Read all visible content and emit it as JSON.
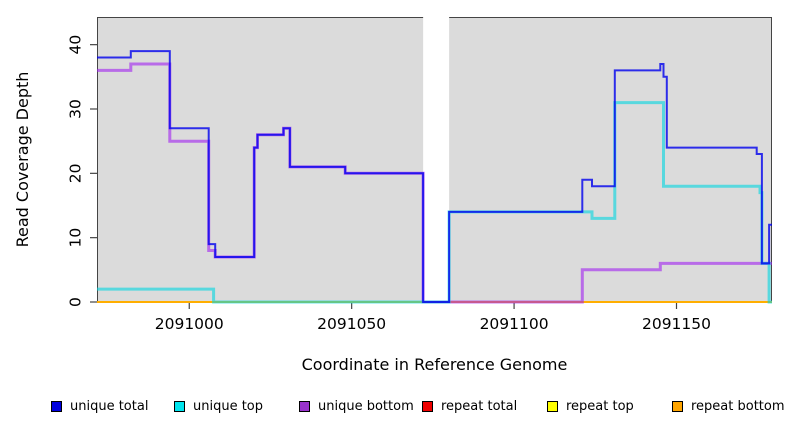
{
  "chart_data": {
    "type": "line",
    "title": "",
    "xlabel": "Coordinate in Reference Genome",
    "ylabel": "Read Coverage Depth",
    "xlim": [
      2090971.6,
      2091179.4
    ],
    "ylim": [
      0,
      44.3
    ],
    "xticks": [
      2091000,
      2091050,
      2091100,
      2091150
    ],
    "yticks": [
      0,
      10,
      20,
      30,
      40
    ],
    "grid": false,
    "panel_background": "#DBDBDB",
    "gap_band": {
      "x0": 2091072,
      "x1": 2091080,
      "color": "#FFFFFF"
    },
    "legend_position": "bottom",
    "series": [
      {
        "name": "repeat total",
        "color": "#FF0000",
        "opacity": 1.0,
        "width": 2,
        "points": [
          [
            2090971.6,
            0
          ],
          [
            2091179.4,
            0
          ]
        ]
      },
      {
        "name": "repeat top",
        "color": "#FFFF00",
        "opacity": 1.0,
        "width": 2,
        "points": [
          [
            2090971.6,
            0
          ],
          [
            2091179.4,
            0
          ]
        ]
      },
      {
        "name": "repeat bottom",
        "color": "#FFA500",
        "opacity": 0.9,
        "width": 2,
        "points": [
          [
            2090971.6,
            0
          ],
          [
            2091179.4,
            0
          ]
        ]
      },
      {
        "name": "unique bottom",
        "color": "#A020F0",
        "opacity": 0.6,
        "width": 3,
        "points": [
          [
            2090971.6,
            36
          ],
          [
            2090982,
            36
          ],
          [
            2090982,
            37
          ],
          [
            2090994,
            37
          ],
          [
            2090994,
            25
          ],
          [
            2091006,
            25
          ],
          [
            2091006,
            8
          ],
          [
            2091008,
            8
          ],
          [
            2091008,
            7
          ],
          [
            2091020,
            7
          ],
          [
            2091020,
            24
          ],
          [
            2091021,
            24
          ],
          [
            2091021,
            26
          ],
          [
            2091029,
            26
          ],
          [
            2091029,
            27
          ],
          [
            2091031,
            27
          ],
          [
            2091031,
            21
          ],
          [
            2091048,
            21
          ],
          [
            2091048,
            20
          ],
          [
            2091072,
            20
          ],
          [
            2091072,
            0
          ],
          [
            2091121,
            0
          ],
          [
            2091121,
            5
          ],
          [
            2091145,
            5
          ],
          [
            2091145,
            6
          ],
          [
            2091179.4,
            6
          ]
        ]
      },
      {
        "name": "unique top",
        "color": "#00D5E0",
        "opacity": 0.6,
        "width": 3,
        "points": [
          [
            2090971.6,
            2
          ],
          [
            2091007.5,
            2
          ],
          [
            2091007.5,
            0
          ],
          [
            2091080,
            0
          ],
          [
            2091080,
            14
          ],
          [
            2091124,
            14
          ],
          [
            2091124,
            13
          ],
          [
            2091131,
            13
          ],
          [
            2091131,
            31
          ],
          [
            2091146,
            31
          ],
          [
            2091146,
            18
          ],
          [
            2091175.7,
            18
          ],
          [
            2091175.7,
            17
          ],
          [
            2091176.3,
            17
          ],
          [
            2091176.3,
            6
          ],
          [
            2091178.5,
            6
          ],
          [
            2091178.5,
            0
          ],
          [
            2091179.4,
            0
          ]
        ]
      },
      {
        "name": "unique total",
        "color": "#0000EE",
        "opacity": 0.8,
        "width": 2,
        "points": [
          [
            2090971.6,
            38
          ],
          [
            2090982,
            38
          ],
          [
            2090982,
            39
          ],
          [
            2090994,
            39
          ],
          [
            2090994,
            27
          ],
          [
            2091006,
            27
          ],
          [
            2091006,
            9
          ],
          [
            2091008,
            9
          ],
          [
            2091008,
            7
          ],
          [
            2091020,
            7
          ],
          [
            2091020,
            24
          ],
          [
            2091021,
            24
          ],
          [
            2091021,
            26
          ],
          [
            2091029,
            26
          ],
          [
            2091029,
            27
          ],
          [
            2091031,
            27
          ],
          [
            2091031,
            21
          ],
          [
            2091048,
            21
          ],
          [
            2091048,
            20
          ],
          [
            2091072,
            20
          ],
          [
            2091072,
            0
          ],
          [
            2091080,
            0
          ],
          [
            2091080,
            14
          ],
          [
            2091121,
            14
          ],
          [
            2091121,
            19
          ],
          [
            2091124,
            19
          ],
          [
            2091124,
            18
          ],
          [
            2091131,
            18
          ],
          [
            2091131,
            36
          ],
          [
            2091145,
            36
          ],
          [
            2091145,
            37
          ],
          [
            2091146,
            37
          ],
          [
            2091146,
            35
          ],
          [
            2091147,
            35
          ],
          [
            2091147,
            24
          ],
          [
            2091174.7,
            24
          ],
          [
            2091174.7,
            23
          ],
          [
            2091176.3,
            23
          ],
          [
            2091176.3,
            6
          ],
          [
            2091178.5,
            6
          ],
          [
            2091178.5,
            12
          ],
          [
            2091179.4,
            12
          ]
        ]
      }
    ]
  },
  "legend": {
    "items": [
      {
        "label": "unique total",
        "color": "#0000DD"
      },
      {
        "label": "unique top",
        "color": "#00E5EE"
      },
      {
        "label": "unique bottom",
        "color": "#9932CC"
      },
      {
        "label": "repeat total",
        "color": "#EE0000"
      },
      {
        "label": "repeat top",
        "color": "#FFFF00"
      },
      {
        "label": "repeat bottom",
        "color": "#FFA500"
      }
    ]
  }
}
